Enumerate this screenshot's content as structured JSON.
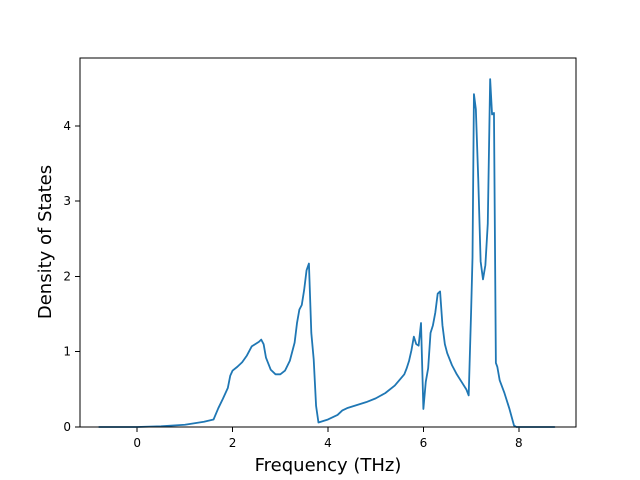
{
  "chart_data": {
    "type": "line",
    "title": "",
    "xlabel": "Frequency (THz)",
    "ylabel": "Density of States",
    "xlim": [
      -1.2,
      9.2
    ],
    "ylim": [
      0,
      4.9
    ],
    "xticks": [
      0,
      2,
      4,
      6,
      8
    ],
    "yticks": [
      0,
      1,
      2,
      3,
      4
    ],
    "grid": false,
    "legend": "none",
    "series_color": "#1f77b4",
    "series": [
      {
        "x": [
          -0.8,
          -0.5,
          0.0,
          0.5,
          1.0,
          1.2,
          1.4,
          1.6,
          1.7,
          1.8,
          1.9,
          1.95,
          2.0,
          2.1,
          2.2,
          2.3,
          2.4,
          2.5,
          2.55,
          2.6,
          2.65,
          2.7,
          2.8,
          2.9,
          3.0,
          3.1,
          3.2,
          3.3,
          3.35,
          3.4,
          3.45,
          3.5,
          3.55,
          3.6,
          3.65,
          3.7,
          3.75,
          3.8,
          4.0,
          4.2,
          4.3,
          4.4,
          4.6,
          4.8,
          5.0,
          5.2,
          5.4,
          5.6,
          5.65,
          5.7,
          5.75,
          5.8,
          5.85,
          5.9,
          5.95,
          6.0,
          6.05,
          6.1,
          6.15,
          6.2,
          6.25,
          6.3,
          6.35,
          6.4,
          6.45,
          6.5,
          6.6,
          6.7,
          6.8,
          6.9,
          6.95,
          7.0,
          7.03,
          7.06,
          7.1,
          7.15,
          7.2,
          7.25,
          7.3,
          7.35,
          7.4,
          7.44,
          7.48,
          7.52,
          7.55,
          7.6,
          7.7,
          7.8,
          7.9,
          7.95,
          8.0,
          8.2,
          8.5,
          8.75
        ],
        "y": [
          0.0,
          0.0,
          0.0,
          0.01,
          0.03,
          0.05,
          0.07,
          0.1,
          0.25,
          0.38,
          0.52,
          0.68,
          0.75,
          0.8,
          0.86,
          0.95,
          1.07,
          1.11,
          1.13,
          1.16,
          1.1,
          0.92,
          0.76,
          0.7,
          0.7,
          0.75,
          0.88,
          1.12,
          1.38,
          1.56,
          1.62,
          1.82,
          2.08,
          2.17,
          1.25,
          0.9,
          0.28,
          0.06,
          0.1,
          0.16,
          0.22,
          0.25,
          0.29,
          0.33,
          0.38,
          0.45,
          0.55,
          0.7,
          0.78,
          0.88,
          1.02,
          1.2,
          1.1,
          1.08,
          1.38,
          0.24,
          0.6,
          0.78,
          1.25,
          1.35,
          1.52,
          1.77,
          1.8,
          1.35,
          1.1,
          0.98,
          0.82,
          0.7,
          0.6,
          0.5,
          0.42,
          1.52,
          2.25,
          4.42,
          4.22,
          3.3,
          2.2,
          1.96,
          2.15,
          2.7,
          4.62,
          4.15,
          4.17,
          0.85,
          0.8,
          0.62,
          0.45,
          0.25,
          0.02,
          0.0,
          0.0,
          0.0,
          0.0,
          0.0
        ]
      }
    ]
  }
}
